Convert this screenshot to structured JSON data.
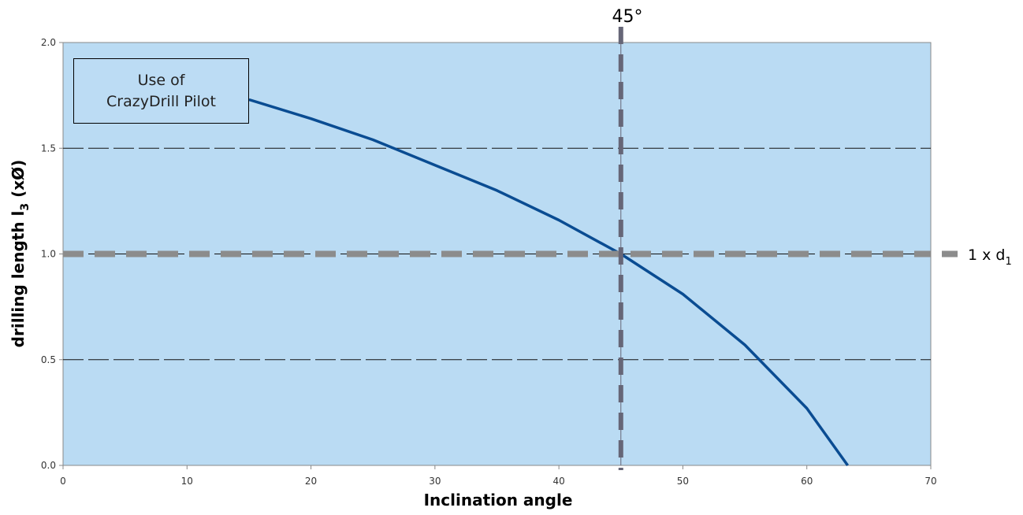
{
  "chart_data": {
    "type": "line",
    "xlabel": "Inclination angle",
    "ylabel_main": "drilling length  l",
    "ylabel_sub": "3",
    "ylabel_suffix": " (xØ)",
    "xlim": [
      0,
      70
    ],
    "ylim": [
      0,
      2
    ],
    "x_ticks": [
      0,
      10,
      20,
      30,
      40,
      50,
      60,
      70
    ],
    "x_tick_labels": [
      "0",
      "10",
      "20",
      "30",
      "40",
      "50",
      "60",
      "70"
    ],
    "y_ticks": [
      0,
      0.5,
      1,
      1.5,
      2
    ],
    "y_tick_labels": [
      "0.0",
      "0.5",
      "1.0",
      "1.5",
      "2.0"
    ],
    "grid": "horizontal dashed",
    "plot_background": "#badbf3",
    "series": [
      {
        "color": "#0a4c92",
        "x": [
          15,
          20,
          25,
          30,
          35,
          40,
          45,
          50,
          55,
          60,
          63.3
        ],
        "y": [
          1.73,
          1.64,
          1.54,
          1.42,
          1.3,
          1.16,
          1.0,
          0.81,
          0.57,
          0.27,
          0.0
        ]
      }
    ],
    "reference_lines": [
      {
        "orientation": "horizontal",
        "value": 1.0,
        "label_main": "1 x d",
        "label_sub": "1",
        "color": "#8c8c8c"
      },
      {
        "orientation": "vertical",
        "value": 45,
        "label": "45°",
        "color": "#666677"
      }
    ],
    "annotations": [
      {
        "lines": [
          "Use of",
          "CrazyDrill Pilot"
        ]
      }
    ]
  }
}
